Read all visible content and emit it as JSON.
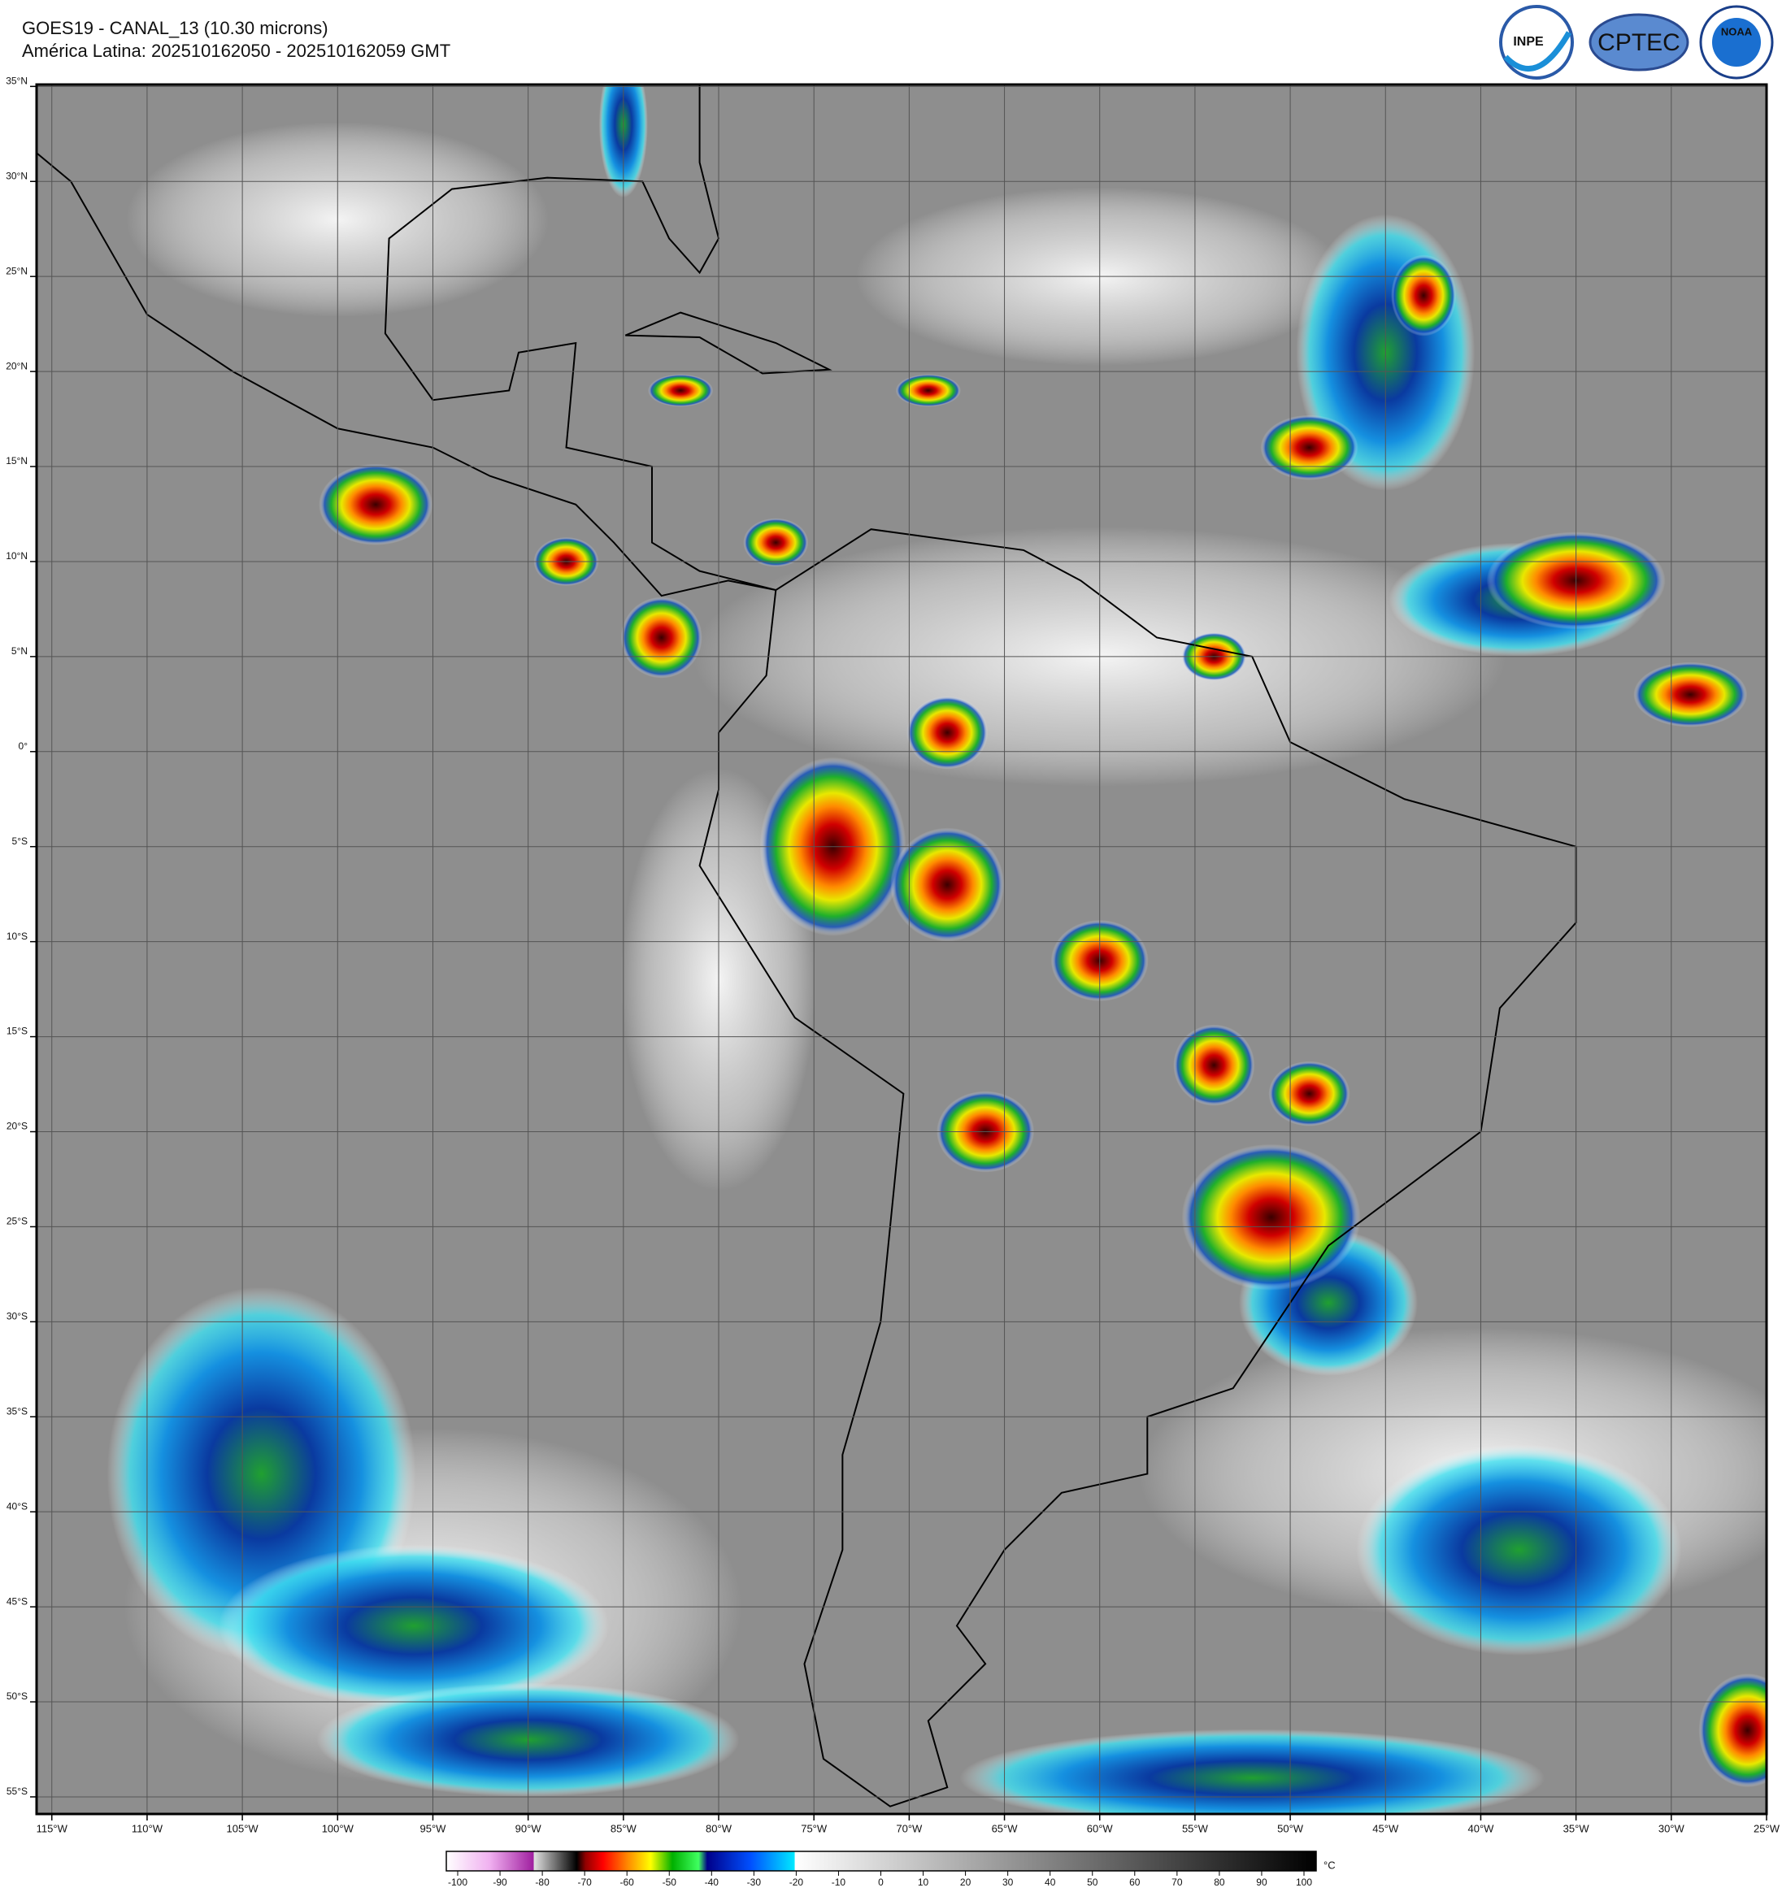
{
  "header": {
    "title": "GOES19 - CANAL_13 (10.30 microns)",
    "subtitle": "América Latina: 202510162050 - 202510162059 GMT"
  },
  "logos": [
    "INPE",
    "CPTEC",
    "NOAA"
  ],
  "map": {
    "lat_labels": [
      "35°N",
      "30°N",
      "25°N",
      "20°N",
      "15°N",
      "10°N",
      "5°N",
      "0°",
      "5°S",
      "10°S",
      "15°S",
      "20°S",
      "25°S",
      "30°S",
      "35°S",
      "40°S",
      "45°S",
      "50°S",
      "55°S"
    ],
    "lon_labels": [
      "115°W",
      "110°W",
      "105°W",
      "100°W",
      "95°W",
      "90°W",
      "85°W",
      "80°W",
      "75°W",
      "70°W",
      "65°W",
      "60°W",
      "55°W",
      "50°W",
      "45°W",
      "40°W",
      "35°W",
      "30°W",
      "25°W"
    ]
  },
  "colorbar": {
    "ticks": [
      "-100",
      "-90",
      "-80",
      "-70",
      "-60",
      "-50",
      "-40",
      "-30",
      "-20",
      "-10",
      "0",
      "10",
      "20",
      "30",
      "40",
      "50",
      "60",
      "70",
      "80",
      "90",
      "100"
    ],
    "unit": "°C"
  }
}
